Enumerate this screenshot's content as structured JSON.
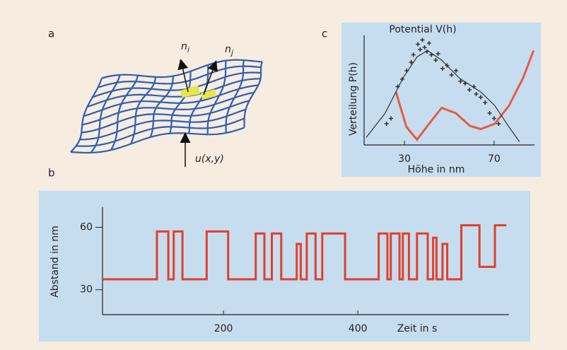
{
  "panel_labels": [
    "a",
    "b",
    "c"
  ],
  "diagram": {
    "normal_i": {
      "base": "n",
      "sub": "i"
    },
    "normal_j": {
      "base": "n",
      "sub": "j"
    },
    "displacement": "u(x,y)"
  },
  "chart_data": [
    {
      "type": "line",
      "xlabel": "Zeit in s",
      "ylabel": "Abstand in nm",
      "xlim": [
        20,
        625
      ],
      "ylim": [
        18,
        68
      ],
      "xticks": [
        200,
        400
      ],
      "yticks": [
        30,
        60
      ],
      "series": [
        {
          "color": "#e0402a",
          "x": [
            20,
            101,
            101,
            118,
            118,
            126,
            126,
            139,
            139,
            175,
            175,
            207,
            207,
            248,
            248,
            261,
            261,
            272,
            272,
            286,
            286,
            309,
            309,
            315,
            315,
            324,
            324,
            337,
            337,
            347,
            347,
            381,
            381,
            431,
            431,
            444,
            444,
            449,
            449,
            462,
            462,
            467,
            467,
            476,
            476,
            488,
            488,
            504,
            504,
            512,
            512,
            517,
            517,
            526,
            526,
            533,
            533,
            554,
            554,
            581,
            581,
            604,
            604,
            621
          ],
          "values": [
            35,
            35,
            58,
            58,
            35,
            35,
            58,
            58,
            35,
            35,
            58,
            58,
            35,
            35,
            57,
            57,
            35,
            35,
            57,
            57,
            35,
            35,
            52,
            52,
            35,
            35,
            57,
            57,
            35,
            35,
            57,
            57,
            35,
            35,
            57,
            57,
            35,
            35,
            57,
            57,
            35,
            35,
            57,
            57,
            35,
            35,
            57,
            57,
            35,
            35,
            55,
            55,
            35,
            35,
            52,
            52,
            35,
            35,
            61,
            61,
            41,
            41,
            61,
            61
          ]
        }
      ]
    },
    {
      "type": "line",
      "title": "Potential V(h)",
      "xlabel": "Höhe in nm",
      "ylabel": "Verteilung P(h)",
      "xlim": [
        12,
        88
      ],
      "ylim": [
        0,
        1
      ],
      "xticks": [
        30,
        70
      ],
      "series": [
        {
          "color": "#e85a40",
          "x": [
            26.2,
            30.9,
            35.6,
            40.3,
            46.6,
            52.9,
            59.2,
            64,
            70.3,
            76.6,
            82.9,
            87.6
          ],
          "values": [
            0.5,
            0.17,
            0.05,
            0.18,
            0.35,
            0.3,
            0.18,
            0.15,
            0.2,
            0.37,
            0.63,
            0.89
          ]
        },
        {
          "color": "#333333",
          "x": [
            12.9,
            21.4,
            29.3,
            35.6,
            40.3,
            46.6,
            54.5,
            64,
            70.3,
            76.6,
            81.3
          ],
          "values": [
            0.07,
            0.3,
            0.63,
            0.83,
            0.89,
            0.8,
            0.63,
            0.5,
            0.37,
            0.17,
            0.03
          ]
        },
        {
          "color": "#333333",
          "marker": "+",
          "x": [
            22,
            24,
            27,
            29,
            31,
            33,
            34,
            36,
            37,
            38,
            39,
            40,
            41,
            42,
            44,
            45,
            47,
            49,
            51,
            53,
            55,
            57,
            59,
            61,
            62,
            64,
            66,
            68,
            70,
            72
          ],
          "values": [
            0.2,
            0.25,
            0.55,
            0.62,
            0.7,
            0.78,
            0.85,
            0.95,
            0.9,
            0.99,
            0.92,
            0.88,
            0.96,
            0.85,
            0.8,
            0.86,
            0.72,
            0.75,
            0.66,
            0.7,
            0.6,
            0.58,
            0.52,
            0.55,
            0.48,
            0.45,
            0.4,
            0.3,
            0.25,
            0.2
          ]
        }
      ]
    }
  ]
}
